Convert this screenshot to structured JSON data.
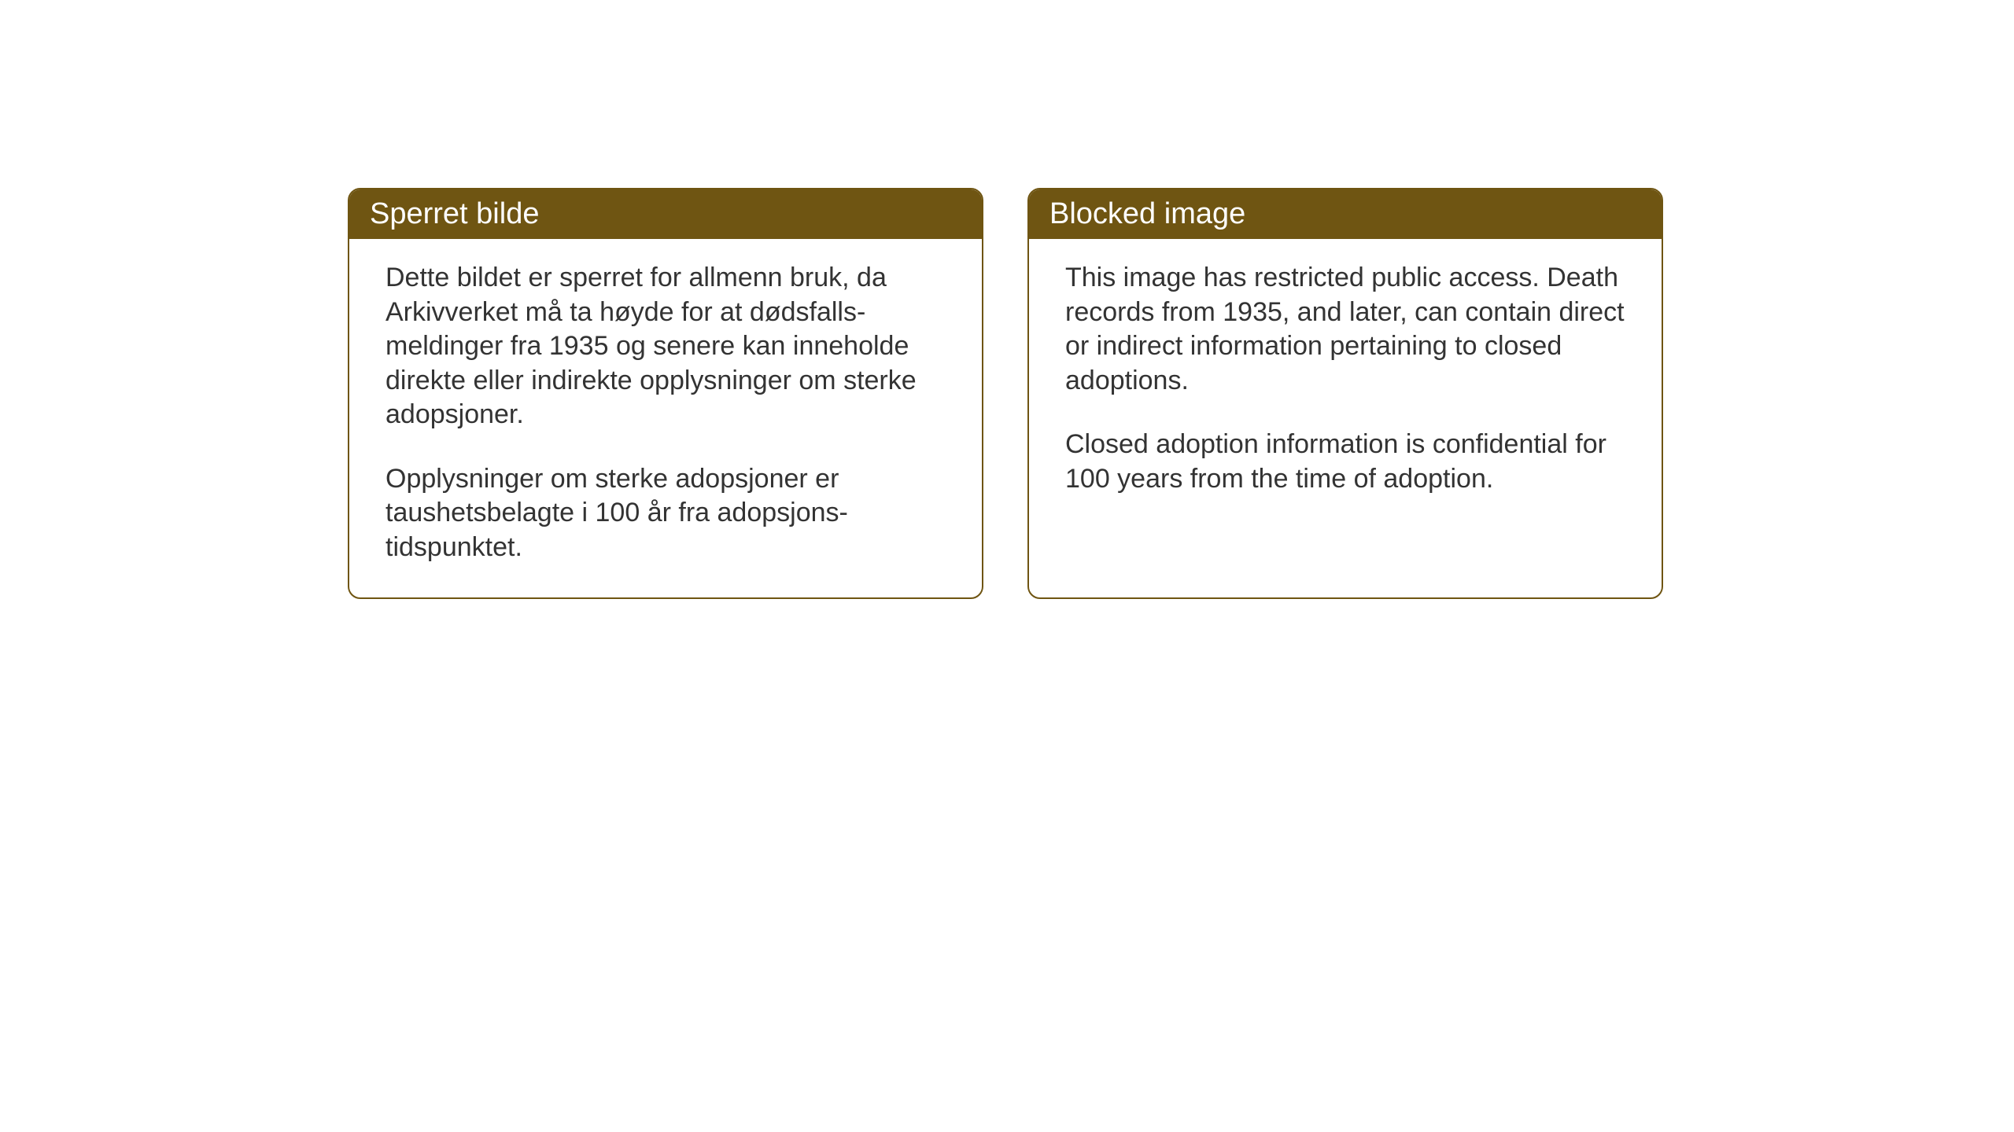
{
  "layout": {
    "background_color": "#ffffff",
    "card_border_color": "#6f5512",
    "header_background_color": "#6f5512",
    "header_text_color": "#ffffff",
    "body_text_color": "#333333",
    "header_fontsize": 38,
    "body_fontsize": 34,
    "card_border_radius": 16,
    "card_gap": 56
  },
  "cards": {
    "norwegian": {
      "title": "Sperret bilde",
      "paragraph1": "Dette bildet er sperret for allmenn bruk, da Arkivverket må ta høyde for at dødsfalls-meldinger fra 1935 og senere kan inneholde direkte eller indirekte opplysninger om sterke adopsjoner.",
      "paragraph2": "Opplysninger om sterke adopsjoner er taushetsbelagte i 100 år fra adopsjons-tidspunktet."
    },
    "english": {
      "title": "Blocked image",
      "paragraph1": "This image has restricted public access. Death records from 1935, and later, can contain direct or indirect information pertaining to closed adoptions.",
      "paragraph2": "Closed adoption information is confidential for 100 years from the time of adoption."
    }
  }
}
